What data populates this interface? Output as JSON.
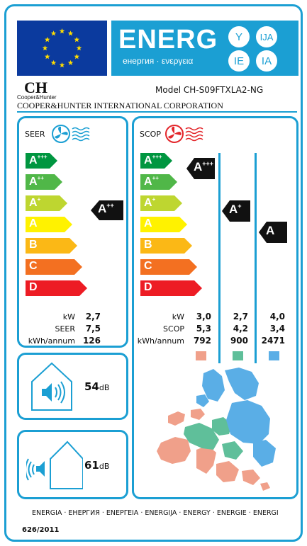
{
  "header": {
    "energy_word": "ENERG",
    "energy_sub": "енергия · ενεργεια",
    "lang_codes": [
      "Y",
      "IJA",
      "IE",
      "IA"
    ],
    "colors": {
      "band": "#1b9fd3",
      "flag": "#0b3a9e",
      "star": "#ffdd00"
    }
  },
  "brand": {
    "logo_letters": "CH",
    "logo_sub": "Cooper&Hunter",
    "model": "Model CH-S09FTXLA2-NG",
    "company": "COOPER&HUNTER INTERNATIONAL CORPORATION"
  },
  "scale_classes": [
    {
      "letter": "A",
      "sup": "+++",
      "color": "#009640"
    },
    {
      "letter": "A",
      "sup": "++",
      "color": "#50b748"
    },
    {
      "letter": "A",
      "sup": "+",
      "color": "#bed630"
    },
    {
      "letter": "A",
      "sup": "",
      "color": "#fff200"
    },
    {
      "letter": "B",
      "sup": "",
      "color": "#fbb816"
    },
    {
      "letter": "C",
      "sup": "",
      "color": "#f37021"
    },
    {
      "letter": "D",
      "sup": "",
      "color": "#ed1c24"
    }
  ],
  "seer": {
    "title": "SEER",
    "rating_letter": "A",
    "rating_sup": "++",
    "rating_index": 1,
    "labels": [
      "kW",
      "SEER",
      "kWh/annum"
    ],
    "values": [
      "2,7",
      "7,5",
      "126"
    ]
  },
  "scop": {
    "title": "SCOP",
    "labels": [
      "kW",
      "SCOP",
      "kWh/annum"
    ],
    "columns": [
      {
        "rating_letter": "A",
        "rating_sup": "+++",
        "rating_index": 0,
        "values": [
          "3,0",
          "5,3",
          "792"
        ],
        "color": "#f0a08a"
      },
      {
        "rating_letter": "A",
        "rating_sup": "+",
        "rating_index": 2,
        "values": [
          "2,7",
          "4,2",
          "900"
        ],
        "color": "#5fbf9a"
      },
      {
        "rating_letter": "A",
        "rating_sup": "",
        "rating_index": 3,
        "values": [
          "4,0",
          "3,4",
          "2471"
        ],
        "color": "#5aaee6"
      }
    ]
  },
  "noise": {
    "indoor": {
      "value": "54",
      "unit": "dB"
    },
    "outdoor": {
      "value": "61",
      "unit": "dB"
    }
  },
  "footer": {
    "languages": "ENERGIA · ЕНЕРГИЯ · ΕΝΕΡΓΕΙΑ · ENERGIJA · ENERGY · ENERGIE · ENERGI",
    "regulation": "626/2011"
  }
}
